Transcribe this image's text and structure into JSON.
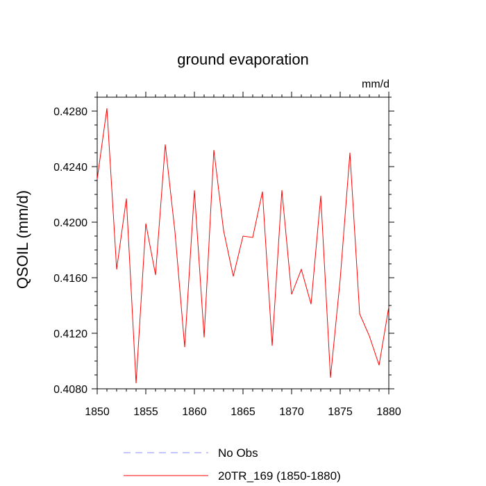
{
  "chart_data": {
    "type": "line",
    "title": "ground evaporation",
    "units_label": "mm/d",
    "xlabel": "",
    "ylabel": "QSOIL  (mm/d)",
    "xlim": [
      1850,
      1880
    ],
    "ylim": [
      0.408,
      0.429
    ],
    "x_ticks": [
      1850,
      1855,
      1860,
      1865,
      1870,
      1875,
      1880
    ],
    "x_tick_labels": [
      "1850",
      "1855",
      "1860",
      "1865",
      "1870",
      "1875",
      "1880"
    ],
    "y_ticks": [
      0.408,
      0.412,
      0.416,
      0.42,
      0.424,
      0.428
    ],
    "y_tick_labels": [
      "0.4080",
      "0.4120",
      "0.4160",
      "0.4200",
      "0.4240",
      "0.4280"
    ],
    "grid": false,
    "legend_position": "bottom",
    "series": [
      {
        "name": "No Obs",
        "color": "#8888ff",
        "style": "dashed",
        "x": [],
        "values": []
      },
      {
        "name": "20TR_169 (1850-1880)",
        "color": "#ff0000",
        "style": "solid",
        "x": [
          1850,
          1851,
          1852,
          1853,
          1854,
          1855,
          1856,
          1857,
          1858,
          1859,
          1860,
          1861,
          1862,
          1863,
          1864,
          1865,
          1866,
          1867,
          1868,
          1869,
          1870,
          1871,
          1872,
          1873,
          1874,
          1875,
          1876,
          1877,
          1878,
          1879,
          1880
        ],
        "values": [
          0.4231,
          0.4282,
          0.4166,
          0.4217,
          0.4084,
          0.4199,
          0.4162,
          0.4256,
          0.4193,
          0.411,
          0.4223,
          0.4117,
          0.4252,
          0.4194,
          0.4161,
          0.419,
          0.4189,
          0.4222,
          0.4111,
          0.4223,
          0.4148,
          0.4166,
          0.4141,
          0.4219,
          0.4088,
          0.4159,
          0.425,
          0.4134,
          0.4118,
          0.4097,
          0.4139
        ]
      }
    ]
  }
}
